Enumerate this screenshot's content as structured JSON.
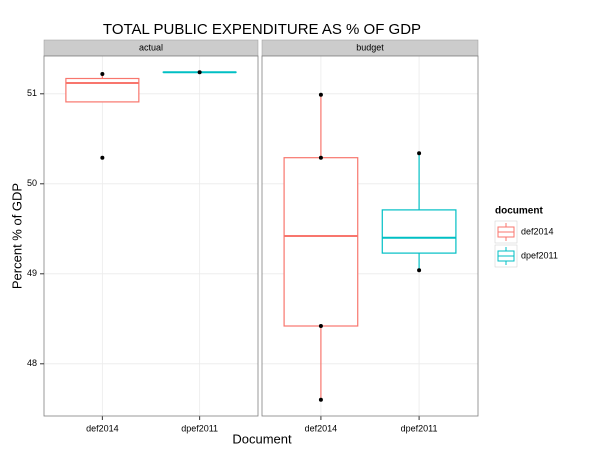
{
  "chart_data": {
    "type": "box",
    "title": "TOTAL PUBLIC EXPENDITURE AS % OF GDP",
    "xlabel": "Document",
    "ylabel": "Percent % of GDP",
    "facets": [
      "actual",
      "budget"
    ],
    "categories": [
      "def2014",
      "dpef2011"
    ],
    "legend_title": "document",
    "legend": "right",
    "grid": true,
    "ylim": [
      47.42,
      51.42
    ],
    "yticks": [
      48,
      49,
      50,
      51
    ],
    "series": [
      {
        "name": "def2014",
        "color": "#F8766D",
        "boxes": [
          {
            "min": 50.91,
            "q1": 50.91,
            "median": 51.12,
            "q3": 51.17,
            "max": 51.21,
            "points": [
              51.22,
              50.29
            ]
          },
          {
            "min": 47.6,
            "q1": 48.42,
            "median": 49.42,
            "q3": 50.29,
            "max": 50.99,
            "points": [
              50.99,
              50.29,
              48.42,
              47.6
            ]
          }
        ]
      },
      {
        "name": "dpef2011",
        "color": "#00BFC4",
        "boxes": [
          {
            "min": 51.24,
            "q1": 51.24,
            "median": 51.24,
            "q3": 51.24,
            "max": 51.24,
            "points": [
              51.24
            ]
          },
          {
            "min": 49.04,
            "q1": 49.23,
            "median": 49.4,
            "q3": 49.71,
            "max": 50.34,
            "points": [
              50.34,
              49.04
            ]
          }
        ]
      }
    ]
  }
}
